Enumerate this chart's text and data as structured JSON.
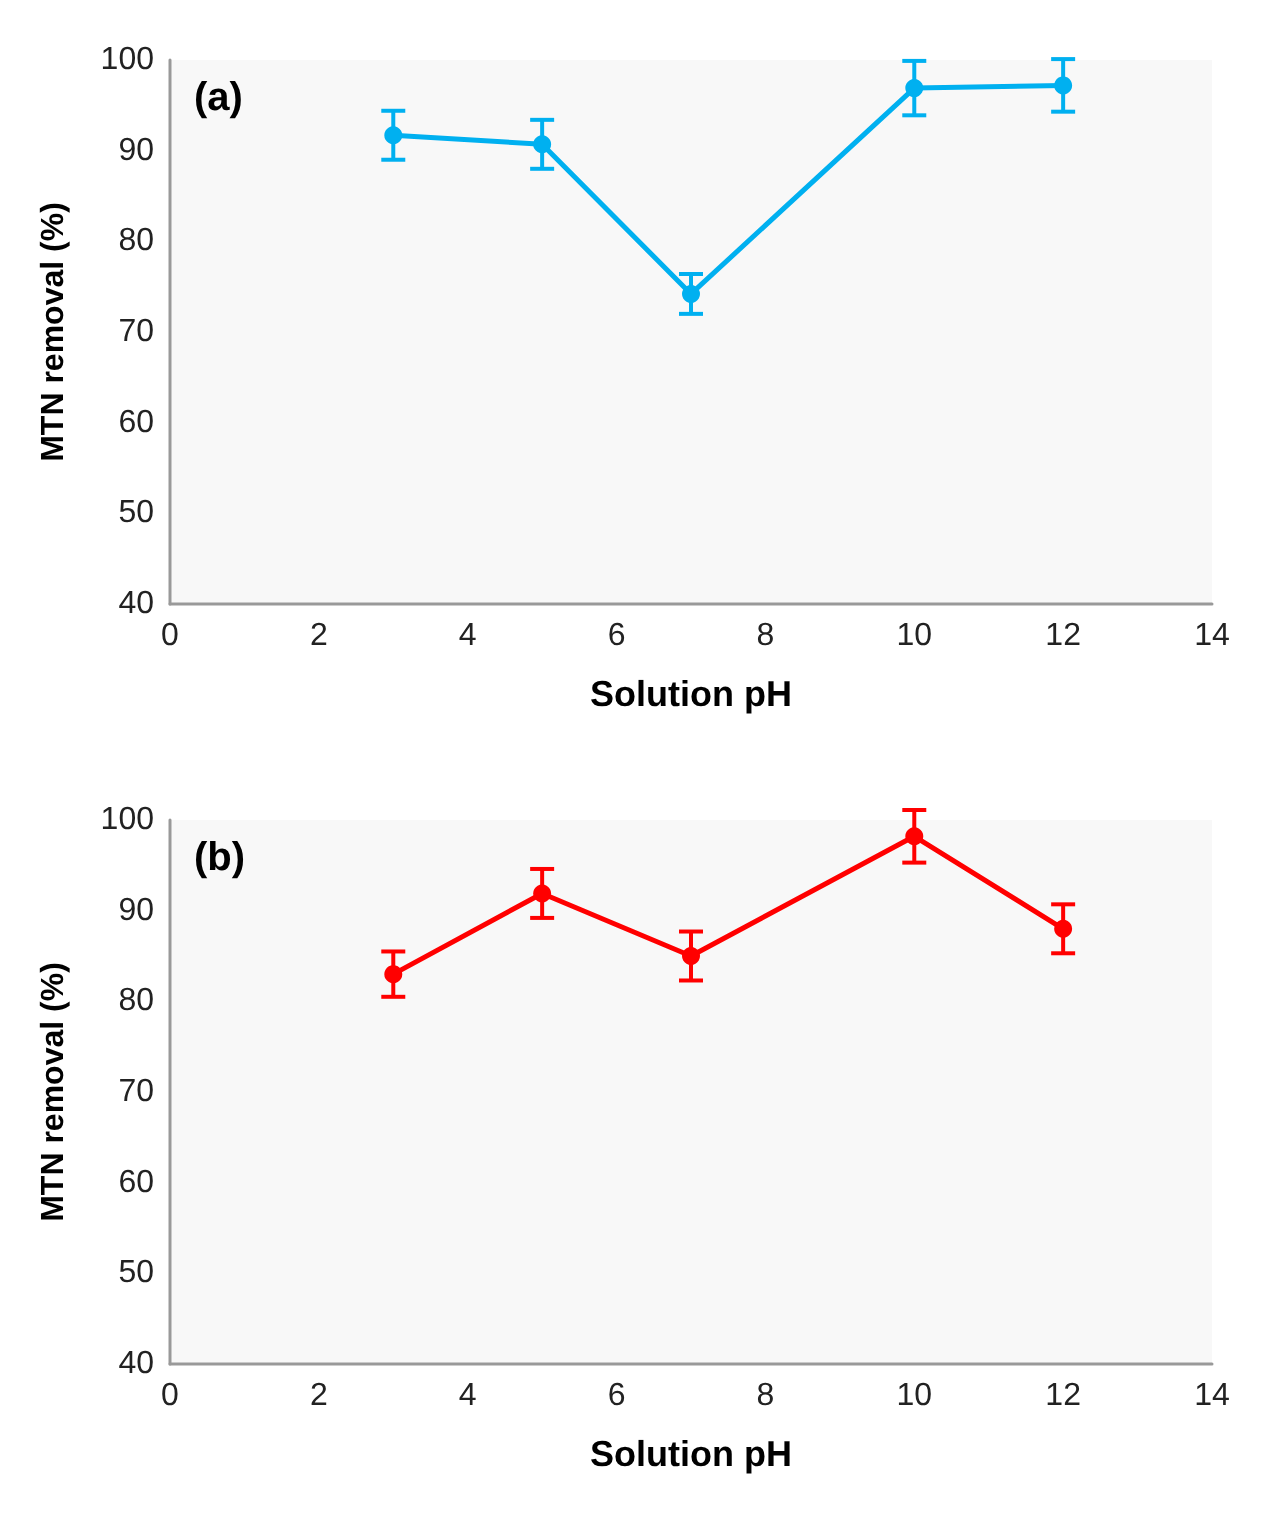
{
  "chart_data": [
    {
      "type": "line",
      "title": "(a)",
      "xlabel": "Solution pH",
      "ylabel": "MTN removal (%)",
      "x": [
        3,
        5,
        7,
        10,
        12
      ],
      "series": [
        {
          "color": "#00b0f0",
          "values": [
            91.7,
            90.7,
            74.2,
            96.9,
            97.2
          ],
          "errors": [
            2.7,
            2.7,
            2.2,
            3,
            2.9
          ]
        }
      ],
      "xlim": [
        0,
        14
      ],
      "xticks": [
        0,
        2,
        4,
        6,
        8,
        10,
        12,
        14
      ],
      "ylim": [
        40,
        100
      ],
      "yticks": [
        40,
        50,
        60,
        70,
        80,
        90,
        100
      ],
      "grid": false,
      "marker": "circle"
    },
    {
      "type": "line",
      "title": "(b)",
      "xlabel": "Solution pH",
      "ylabel": "MTN removal (%)",
      "x": [
        3,
        5,
        7,
        10,
        12
      ],
      "series": [
        {
          "color": "#ff0000",
          "values": [
            83.0,
            91.9,
            85.0,
            98.2,
            88.0
          ],
          "errors": [
            2.5,
            2.7,
            2.7,
            2.9,
            2.7
          ]
        }
      ],
      "xlim": [
        0,
        14
      ],
      "xticks": [
        0,
        2,
        4,
        6,
        8,
        10,
        12,
        14
      ],
      "ylim": [
        40,
        100
      ],
      "yticks": [
        40,
        50,
        60,
        70,
        80,
        90,
        100
      ],
      "grid": false,
      "marker": "circle"
    }
  ]
}
